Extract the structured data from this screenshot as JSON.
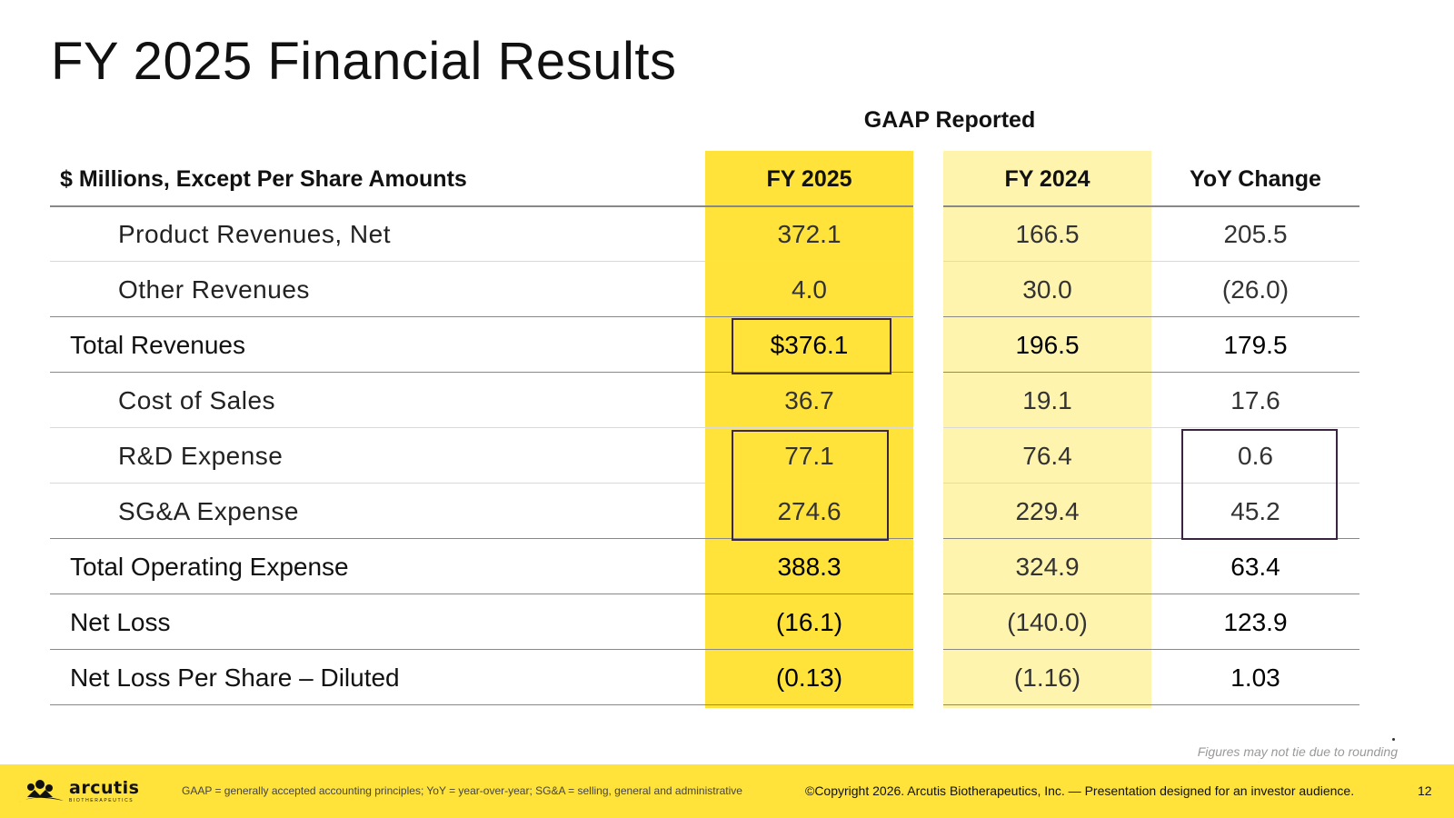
{
  "title": "FY 2025 Financial Results",
  "group_header": "GAAP Reported",
  "headers": {
    "label": "$ Millions, Except Per Share Amounts",
    "col1": "FY 2025",
    "col2": "FY 2024",
    "col3": "YoY Change"
  },
  "rows": [
    {
      "label": "Product Revenues, Net",
      "fy2025": "372.1",
      "fy2024": "166.5",
      "yoy": "205.5"
    },
    {
      "label": "Other Revenues",
      "fy2025": "4.0",
      "fy2024": "30.0",
      "yoy": "(26.0)"
    },
    {
      "label": "Total Revenues",
      "fy2025": "$376.1",
      "fy2024": "196.5",
      "yoy": "179.5"
    },
    {
      "label": "Cost of Sales",
      "fy2025": "36.7",
      "fy2024": "19.1",
      "yoy": "17.6"
    },
    {
      "label": "R&D Expense",
      "fy2025": "77.1",
      "fy2024": "76.4",
      "yoy": "0.6"
    },
    {
      "label": "SG&A Expense",
      "fy2025": "274.6",
      "fy2024": "229.4",
      "yoy": "45.2"
    },
    {
      "label": "Total Operating Expense",
      "fy2025": "388.3",
      "fy2024": "324.9",
      "yoy": "63.4"
    },
    {
      "label": "Net Loss",
      "fy2025": "(16.1)",
      "fy2024": "(140.0)",
      "yoy": "123.9"
    },
    {
      "label": "Net Loss Per Share – Diluted",
      "fy2025": "(0.13)",
      "fy2024": "(1.16)",
      "yoy": "1.03"
    }
  ],
  "rounding_note": "Figures may not tie due to rounding",
  "footer": {
    "logo_name": "arcutis",
    "logo_sub": "BIOTHERAPEUTICS",
    "definitions": "GAAP = generally accepted accounting principles; YoY = year-over-year; SG&A = selling, general and administrative",
    "copyright": "©Copyright 2026. Arcutis Biotherapeutics, Inc. — Presentation designed for an investor audience.",
    "page_number": "12"
  },
  "colors": {
    "fy2025_column": "#ffe33b",
    "fy2024_column": "#fff4ae",
    "footer_bar": "#ffe33b",
    "highlight_box": "#3a2540"
  }
}
